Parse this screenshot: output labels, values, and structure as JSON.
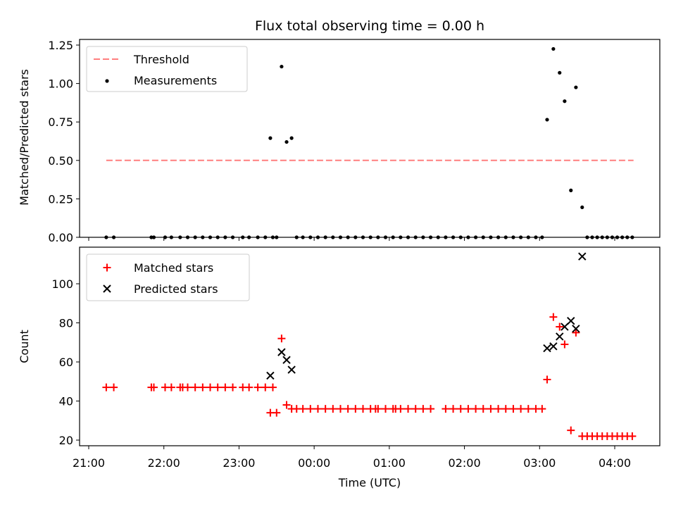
{
  "title": "Flux total observing time = 0.00 h",
  "colors": {
    "threshold": "#ff7f7f",
    "matched": "#ff0000",
    "predicted": "#000000",
    "measure": "#000000"
  },
  "chart_data": [
    {
      "type": "scatter",
      "ylabel": "Matched/Predicted stars",
      "xlabel": "",
      "ylim": [
        0,
        1.27
      ],
      "yticks": [
        0,
        0.25,
        0.5,
        0.75,
        1.0,
        1.25
      ],
      "ytick_labels": [
        "0.00",
        "0.25",
        "0.50",
        "0.75",
        "1.00",
        "1.25"
      ],
      "legend": {
        "placement": "upper left",
        "entries": [
          "Threshold",
          "Measurements"
        ]
      },
      "threshold": {
        "name": "Threshold",
        "y": 0.5,
        "x_start": "21:14",
        "x_end": "04:15"
      },
      "series": [
        {
          "name": "Measurements",
          "points": [
            [
              "21:14",
              0
            ],
            [
              "21:20",
              0
            ],
            [
              "21:50",
              0
            ],
            [
              "21:52",
              0
            ],
            [
              "22:01",
              0
            ],
            [
              "22:06",
              0
            ],
            [
              "22:13",
              0
            ],
            [
              "22:19",
              0
            ],
            [
              "22:25",
              0
            ],
            [
              "22:31",
              0
            ],
            [
              "22:37",
              0
            ],
            [
              "22:43",
              0
            ],
            [
              "22:49",
              0
            ],
            [
              "22:55",
              0
            ],
            [
              "23:03",
              0
            ],
            [
              "23:08",
              0
            ],
            [
              "23:15",
              0
            ],
            [
              "23:21",
              0
            ],
            [
              "23:27",
              0
            ],
            [
              "23:25",
              0.645
            ],
            [
              "23:30",
              0
            ],
            [
              "23:34",
              1.11
            ],
            [
              "23:38",
              0.62
            ],
            [
              "23:42",
              0.645
            ],
            [
              "23:46",
              0
            ],
            [
              "23:51",
              0
            ],
            [
              "23:57",
              0
            ],
            [
              "00:03",
              0
            ],
            [
              "00:09",
              0
            ],
            [
              "00:15",
              0
            ],
            [
              "00:21",
              0
            ],
            [
              "00:27",
              0
            ],
            [
              "00:33",
              0
            ],
            [
              "00:39",
              0
            ],
            [
              "00:45",
              0
            ],
            [
              "00:51",
              0
            ],
            [
              "00:57",
              0
            ],
            [
              "01:03",
              0
            ],
            [
              "01:09",
              0
            ],
            [
              "01:15",
              0
            ],
            [
              "01:21",
              0
            ],
            [
              "01:27",
              0
            ],
            [
              "01:33",
              0
            ],
            [
              "01:39",
              0
            ],
            [
              "01:45",
              0
            ],
            [
              "01:51",
              0
            ],
            [
              "01:57",
              0
            ],
            [
              "02:03",
              0
            ],
            [
              "02:09",
              0
            ],
            [
              "02:15",
              0
            ],
            [
              "02:21",
              0
            ],
            [
              "02:27",
              0
            ],
            [
              "02:33",
              0
            ],
            [
              "02:39",
              0
            ],
            [
              "02:45",
              0
            ],
            [
              "02:51",
              0
            ],
            [
              "02:57",
              0
            ],
            [
              "03:02",
              0
            ],
            [
              "03:06",
              0.765
            ],
            [
              "03:11",
              1.225
            ],
            [
              "03:16",
              1.07
            ],
            [
              "03:20",
              0.885
            ],
            [
              "03:25",
              0.305
            ],
            [
              "03:29",
              0.975
            ],
            [
              "03:34",
              0.195
            ],
            [
              "03:38",
              0
            ],
            [
              "03:42",
              0
            ],
            [
              "03:46",
              0
            ],
            [
              "03:50",
              0
            ],
            [
              "03:54",
              0
            ],
            [
              "03:58",
              0
            ],
            [
              "04:02",
              0
            ],
            [
              "04:06",
              0
            ],
            [
              "04:10",
              0
            ],
            [
              "04:14",
              0
            ]
          ]
        }
      ]
    },
    {
      "type": "scatter",
      "ylabel": "Count",
      "xlabel": "Time (UTC)",
      "ylim": [
        18,
        118
      ],
      "yticks": [
        20,
        40,
        60,
        80,
        100
      ],
      "ytick_labels": [
        "20",
        "40",
        "60",
        "80",
        "100"
      ],
      "xlim": [
        "20:54",
        "04:36"
      ],
      "xticks": [
        "21:00",
        "22:00",
        "23:00",
        "00:00",
        "01:00",
        "02:00",
        "03:00",
        "04:00"
      ],
      "legend": {
        "placement": "upper left",
        "entries": [
          "Matched stars",
          "Predicted stars"
        ]
      },
      "series": [
        {
          "name": "Matched stars",
          "marker": "+",
          "points": [
            [
              "21:14",
              47
            ],
            [
              "21:20",
              47
            ],
            [
              "21:50",
              47
            ],
            [
              "21:52",
              47
            ],
            [
              "22:01",
              47
            ],
            [
              "22:06",
              47
            ],
            [
              "22:13",
              47
            ],
            [
              "22:15",
              47
            ],
            [
              "22:19",
              47
            ],
            [
              "22:25",
              47
            ],
            [
              "22:31",
              47
            ],
            [
              "22:37",
              47
            ],
            [
              "22:43",
              47
            ],
            [
              "22:49",
              47
            ],
            [
              "22:55",
              47
            ],
            [
              "23:03",
              47
            ],
            [
              "23:08",
              47
            ],
            [
              "23:15",
              47
            ],
            [
              "23:21",
              47
            ],
            [
              "23:27",
              47
            ],
            [
              "23:25",
              34
            ],
            [
              "23:30",
              34
            ],
            [
              "23:34",
              72
            ],
            [
              "23:38",
              38
            ],
            [
              "23:42",
              36
            ],
            [
              "23:46",
              36
            ],
            [
              "23:51",
              36
            ],
            [
              "23:57",
              36
            ],
            [
              "00:03",
              36
            ],
            [
              "00:09",
              36
            ],
            [
              "00:15",
              36
            ],
            [
              "00:21",
              36
            ],
            [
              "00:27",
              36
            ],
            [
              "00:33",
              36
            ],
            [
              "00:39",
              36
            ],
            [
              "00:45",
              36
            ],
            [
              "00:49",
              36
            ],
            [
              "00:51",
              36
            ],
            [
              "00:57",
              36
            ],
            [
              "01:03",
              36
            ],
            [
              "01:05",
              36
            ],
            [
              "01:09",
              36
            ],
            [
              "01:15",
              36
            ],
            [
              "01:21",
              36
            ],
            [
              "01:27",
              36
            ],
            [
              "01:33",
              36
            ],
            [
              "01:45",
              36
            ],
            [
              "01:51",
              36
            ],
            [
              "01:57",
              36
            ],
            [
              "02:03",
              36
            ],
            [
              "02:09",
              36
            ],
            [
              "02:15",
              36
            ],
            [
              "02:21",
              36
            ],
            [
              "02:27",
              36
            ],
            [
              "02:33",
              36
            ],
            [
              "02:39",
              36
            ],
            [
              "02:45",
              36
            ],
            [
              "02:51",
              36
            ],
            [
              "02:57",
              36
            ],
            [
              "03:02",
              36
            ],
            [
              "03:06",
              51
            ],
            [
              "03:11",
              83
            ],
            [
              "03:16",
              78
            ],
            [
              "03:20",
              69
            ],
            [
              "03:25",
              25
            ],
            [
              "03:29",
              75
            ],
            [
              "03:34",
              22
            ],
            [
              "03:38",
              22
            ],
            [
              "03:42",
              22
            ],
            [
              "03:46",
              22
            ],
            [
              "03:50",
              22
            ],
            [
              "03:54",
              22
            ],
            [
              "03:58",
              22
            ],
            [
              "04:02",
              22
            ],
            [
              "04:06",
              22
            ],
            [
              "04:10",
              22
            ],
            [
              "04:14",
              22
            ]
          ]
        },
        {
          "name": "Predicted stars",
          "marker": "x",
          "points": [
            [
              "23:25",
              53
            ],
            [
              "23:34",
              65
            ],
            [
              "23:38",
              61
            ],
            [
              "23:42",
              56
            ],
            [
              "03:06",
              67
            ],
            [
              "03:11",
              68
            ],
            [
              "03:16",
              73
            ],
            [
              "03:20",
              78
            ],
            [
              "03:25",
              81
            ],
            [
              "03:29",
              77
            ],
            [
              "03:34",
              114
            ]
          ]
        }
      ]
    }
  ]
}
